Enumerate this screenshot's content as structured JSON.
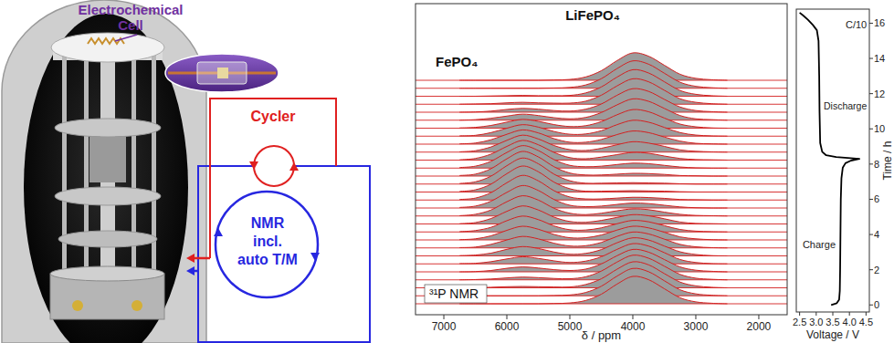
{
  "diagram": {
    "labels": {
      "electrochemical_cell": [
        "Electrochemical",
        "Cell"
      ],
      "cycler": "Cycler",
      "nmr": [
        "NMR",
        "incl.",
        "auto T/M"
      ]
    }
  },
  "chart_data": [
    {
      "type": "line",
      "annotations": [
        "LiFePO₄",
        "FePO₄",
        "³¹P NMR"
      ],
      "x_label": "δ / ppm",
      "x": [
        6750,
        6500,
        6250,
        6000,
        5750,
        5500,
        5250,
        5000,
        4750,
        4500,
        4250,
        4000,
        3750,
        3500,
        3250,
        3000,
        2750,
        2500
      ],
      "xlim": [
        7450,
        1550
      ],
      "xticks": [
        7000,
        6000,
        5000,
        4000,
        3000,
        2000
      ],
      "tick_labels": "x",
      "color": "#d42020",
      "series": [
        {
          "values": [
            0,
            0,
            0,
            0,
            0,
            0,
            1,
            3,
            12,
            35,
            72,
            100,
            88,
            55,
            22,
            7,
            2,
            0
          ]
        },
        {
          "values": [
            0,
            0,
            0,
            0,
            0,
            0,
            1,
            3,
            12,
            35,
            72,
            100,
            88,
            55,
            22,
            7,
            2,
            0
          ]
        },
        {
          "values": [
            0,
            0,
            2,
            4,
            5,
            4,
            3,
            3,
            12,
            33,
            68,
            95,
            84,
            52,
            21,
            7,
            2,
            0
          ]
        },
        {
          "values": [
            0,
            1,
            3,
            7,
            10,
            8,
            5,
            4,
            11,
            32,
            65,
            90,
            79,
            50,
            20,
            6,
            2,
            0
          ]
        },
        {
          "values": [
            0,
            1,
            5,
            13,
            18,
            14,
            8,
            5,
            10,
            29,
            59,
            82,
            72,
            45,
            18,
            6,
            2,
            0
          ]
        },
        {
          "values": [
            1,
            2,
            8,
            18,
            26,
            20,
            11,
            5,
            10,
            26,
            53,
            74,
            65,
            41,
            16,
            5,
            1,
            0
          ]
        },
        {
          "values": [
            1,
            3,
            10,
            24,
            34,
            27,
            14,
            6,
            9,
            23,
            48,
            66,
            58,
            36,
            15,
            5,
            1,
            0
          ]
        },
        {
          "values": [
            1,
            3,
            13,
            29,
            42,
            33,
            17,
            7,
            8,
            20,
            42,
            58,
            51,
            32,
            13,
            4,
            1,
            0
          ]
        },
        {
          "values": [
            1,
            4,
            15,
            35,
            50,
            39,
            20,
            8,
            8,
            18,
            36,
            50,
            44,
            28,
            11,
            4,
            1,
            0
          ]
        },
        {
          "values": [
            1,
            5,
            17,
            41,
            58,
            45,
            22,
            8,
            7,
            15,
            30,
            42,
            37,
            23,
            9,
            3,
            1,
            0
          ]
        },
        {
          "values": [
            1,
            5,
            20,
            46,
            66,
            51,
            25,
            9,
            6,
            13,
            24,
            34,
            30,
            19,
            7,
            2,
            1,
            0
          ]
        },
        {
          "values": [
            1,
            6,
            22,
            52,
            74,
            58,
            28,
            10,
            5,
            10,
            19,
            26,
            23,
            14,
            6,
            2,
            1,
            0
          ]
        },
        {
          "values": [
            2,
            7,
            25,
            57,
            82,
            64,
            31,
            10,
            5,
            7,
            13,
            18,
            16,
            10,
            4,
            1,
            0,
            0
          ]
        },
        {
          "values": [
            2,
            7,
            27,
            63,
            90,
            70,
            34,
            11,
            4,
            4,
            7,
            10,
            9,
            6,
            2,
            1,
            0,
            0
          ]
        },
        {
          "values": [
            2,
            8,
            29,
            67,
            95,
            74,
            36,
            12,
            3,
            3,
            4,
            5,
            4,
            3,
            1,
            0,
            0,
            0
          ]
        },
        {
          "values": [
            2,
            8,
            29,
            67,
            95,
            74,
            36,
            12,
            3,
            3,
            4,
            5,
            4,
            3,
            1,
            0,
            0,
            0
          ]
        },
        {
          "values": [
            2,
            7,
            27,
            63,
            90,
            70,
            34,
            11,
            4,
            4,
            7,
            10,
            9,
            6,
            2,
            1,
            0,
            0
          ]
        },
        {
          "values": [
            2,
            7,
            25,
            57,
            82,
            64,
            31,
            10,
            5,
            7,
            13,
            18,
            16,
            10,
            4,
            1,
            0,
            0
          ]
        },
        {
          "values": [
            1,
            6,
            22,
            50,
            72,
            56,
            28,
            9,
            5,
            11,
            20,
            28,
            25,
            15,
            6,
            2,
            1,
            0
          ]
        },
        {
          "values": [
            1,
            5,
            19,
            43,
            62,
            48,
            24,
            9,
            6,
            14,
            27,
            38,
            33,
            21,
            8,
            3,
            1,
            0
          ]
        },
        {
          "values": [
            1,
            4,
            16,
            36,
            52,
            41,
            20,
            7,
            7,
            17,
            35,
            48,
            42,
            26,
            11,
            3,
            1,
            0
          ]
        },
        {
          "values": [
            1,
            3,
            13,
            29,
            42,
            33,
            17,
            7,
            8,
            20,
            42,
            58,
            51,
            32,
            13,
            4,
            1,
            0
          ]
        },
        {
          "values": [
            1,
            3,
            10,
            22,
            32,
            25,
            13,
            6,
            9,
            24,
            49,
            68,
            60,
            37,
            15,
            5,
            1,
            0
          ]
        },
        {
          "values": [
            0,
            2,
            7,
            15,
            22,
            17,
            9,
            5,
            10,
            28,
            56,
            78,
            69,
            43,
            17,
            5,
            2,
            0
          ]
        },
        {
          "values": [
            0,
            1,
            4,
            10,
            14,
            11,
            6,
            4,
            11,
            30,
            62,
            86,
            76,
            47,
            19,
            6,
            2,
            0
          ]
        },
        {
          "values": [
            0,
            1,
            2,
            5,
            7,
            5,
            4,
            4,
            11,
            33,
            67,
            93,
            82,
            51,
            20,
            7,
            2,
            0
          ]
        },
        {
          "values": [
            0,
            0,
            1,
            2,
            3,
            2,
            2,
            3,
            12,
            34,
            70,
            97,
            85,
            53,
            21,
            7,
            2,
            0
          ]
        },
        {
          "values": [
            0,
            0,
            0,
            0,
            0,
            0,
            1,
            3,
            12,
            35,
            72,
            100,
            88,
            55,
            22,
            7,
            2,
            0
          ]
        },
        {
          "values": [
            0,
            0,
            0,
            0,
            0,
            0,
            1,
            3,
            12,
            35,
            72,
            100,
            88,
            55,
            22,
            7,
            2,
            0
          ]
        }
      ]
    },
    {
      "type": "line",
      "annotations": [
        "C/10",
        "Discharge",
        "Charge"
      ],
      "x_label": "Voltage / V",
      "y_label": "Time / h",
      "x": [
        3.45,
        3.62,
        3.69,
        3.71,
        3.72,
        3.73,
        3.74,
        3.76,
        3.8,
        3.88,
        4.05,
        4.3,
        3.6,
        3.3,
        3.18,
        3.12,
        3.1,
        3.09,
        3.07,
        3.02,
        2.9,
        2.75,
        2.6,
        2.5
      ],
      "xlim": [
        2.4,
        4.6
      ],
      "xticks": [
        2.5,
        {
          "value": 3,
          "label": "3.0"
        },
        3.5,
        {
          "value": 4,
          "label": "4.0"
        },
        4.5
      ],
      "ylim": [
        -0.4,
        16.8
      ],
      "yticks": [
        0,
        2,
        4,
        6,
        8,
        10,
        12,
        14,
        16
      ],
      "color": "#000000",
      "series": [
        {
          "values": [
            0,
            0.1,
            0.3,
            0.8,
            2,
            4,
            6,
            7.2,
            7.8,
            8.05,
            8.2,
            8.3,
            8.4,
            8.5,
            8.7,
            9.2,
            11,
            13,
            15,
            15.6,
            15.9,
            16.2,
            16.45,
            16.6
          ]
        }
      ]
    }
  ]
}
